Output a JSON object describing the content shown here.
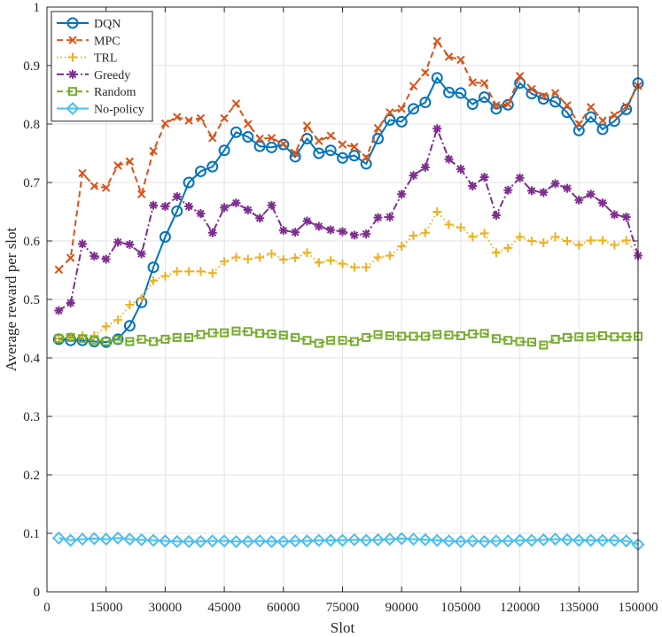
{
  "chart_data": {
    "type": "line",
    "title": "",
    "xlabel": "Slot",
    "ylabel": "Average reward per slot",
    "xlim": [
      0,
      150000
    ],
    "ylim": [
      0,
      1
    ],
    "xticks": [
      0,
      15000,
      30000,
      45000,
      60000,
      75000,
      90000,
      105000,
      120000,
      135000,
      150000
    ],
    "yticks": [
      0,
      0.1,
      0.2,
      0.3,
      0.4,
      0.5,
      0.6,
      0.7,
      0.8,
      0.9,
      1
    ],
    "grid": true,
    "legend_position": "top-left",
    "x": [
      3000,
      6000,
      9000,
      12000,
      15000,
      18000,
      21000,
      24000,
      27000,
      30000,
      33000,
      36000,
      39000,
      42000,
      45000,
      48000,
      51000,
      54000,
      57000,
      60000,
      63000,
      66000,
      69000,
      72000,
      75000,
      78000,
      81000,
      84000,
      87000,
      90000,
      93000,
      96000,
      99000,
      102000,
      105000,
      108000,
      111000,
      114000,
      117000,
      120000,
      123000,
      126000,
      129000,
      132000,
      135000,
      138000,
      141000,
      144000,
      147000,
      150000
    ],
    "series": [
      {
        "name": "DQN",
        "color": "#0072BD",
        "dash": "solid",
        "marker": "circle",
        "values": [
          0.432,
          0.43,
          0.43,
          0.428,
          0.427,
          0.432,
          0.455,
          0.495,
          0.555,
          0.607,
          0.651,
          0.7,
          0.719,
          0.727,
          0.755,
          0.786,
          0.778,
          0.762,
          0.76,
          0.765,
          0.744,
          0.775,
          0.75,
          0.755,
          0.742,
          0.746,
          0.732,
          0.775,
          0.807,
          0.804,
          0.826,
          0.837,
          0.879,
          0.854,
          0.853,
          0.834,
          0.846,
          0.826,
          0.833,
          0.87,
          0.852,
          0.843,
          0.838,
          0.82,
          0.789,
          0.812,
          0.791,
          0.805,
          0.825,
          0.87
        ]
      },
      {
        "name": "MPC",
        "color": "#D95319",
        "dash": "dashed",
        "marker": "x",
        "values": [
          0.551,
          0.571,
          0.716,
          0.694,
          0.691,
          0.729,
          0.736,
          0.68,
          0.754,
          0.801,
          0.812,
          0.806,
          0.81,
          0.776,
          0.81,
          0.835,
          0.8,
          0.775,
          0.776,
          0.766,
          0.75,
          0.797,
          0.771,
          0.78,
          0.765,
          0.761,
          0.743,
          0.793,
          0.82,
          0.826,
          0.865,
          0.888,
          0.942,
          0.915,
          0.91,
          0.871,
          0.87,
          0.832,
          0.834,
          0.882,
          0.86,
          0.848,
          0.853,
          0.832,
          0.8,
          0.829,
          0.806,
          0.815,
          0.83,
          0.865
        ]
      },
      {
        "name": "TRL",
        "color": "#EDB120",
        "dash": "dotted",
        "marker": "plus",
        "values": [
          0.433,
          0.436,
          0.438,
          0.438,
          0.454,
          0.465,
          0.491,
          0.502,
          0.532,
          0.54,
          0.548,
          0.548,
          0.548,
          0.545,
          0.565,
          0.572,
          0.569,
          0.572,
          0.578,
          0.568,
          0.571,
          0.58,
          0.563,
          0.567,
          0.561,
          0.555,
          0.555,
          0.572,
          0.575,
          0.591,
          0.609,
          0.614,
          0.65,
          0.628,
          0.623,
          0.607,
          0.613,
          0.58,
          0.588,
          0.607,
          0.6,
          0.597,
          0.607,
          0.6,
          0.593,
          0.601,
          0.601,
          0.593,
          0.601,
          0.575
        ]
      },
      {
        "name": "Greedy",
        "color": "#7E2F8E",
        "dash": "dashdot",
        "marker": "star",
        "values": [
          0.481,
          0.494,
          0.595,
          0.574,
          0.569,
          0.598,
          0.594,
          0.578,
          0.661,
          0.659,
          0.676,
          0.659,
          0.647,
          0.614,
          0.657,
          0.665,
          0.653,
          0.639,
          0.661,
          0.618,
          0.615,
          0.634,
          0.625,
          0.619,
          0.616,
          0.61,
          0.612,
          0.64,
          0.641,
          0.68,
          0.712,
          0.726,
          0.792,
          0.74,
          0.723,
          0.694,
          0.709,
          0.644,
          0.687,
          0.708,
          0.686,
          0.683,
          0.698,
          0.69,
          0.67,
          0.68,
          0.665,
          0.645,
          0.641,
          0.575
        ]
      },
      {
        "name": "Random",
        "color": "#77AC30",
        "dash": "dashed",
        "marker": "square",
        "values": [
          0.433,
          0.435,
          0.433,
          0.43,
          0.428,
          0.431,
          0.428,
          0.432,
          0.428,
          0.432,
          0.435,
          0.435,
          0.44,
          0.443,
          0.443,
          0.446,
          0.445,
          0.442,
          0.441,
          0.439,
          0.435,
          0.43,
          0.425,
          0.43,
          0.43,
          0.428,
          0.435,
          0.44,
          0.438,
          0.437,
          0.437,
          0.437,
          0.44,
          0.439,
          0.438,
          0.441,
          0.442,
          0.433,
          0.43,
          0.428,
          0.427,
          0.422,
          0.432,
          0.435,
          0.436,
          0.436,
          0.438,
          0.436,
          0.436,
          0.437
        ]
      },
      {
        "name": "No-policy",
        "color": "#4DBEEE",
        "dash": "solid",
        "marker": "diamond",
        "values": [
          0.092,
          0.088,
          0.09,
          0.091,
          0.09,
          0.092,
          0.09,
          0.089,
          0.088,
          0.087,
          0.086,
          0.086,
          0.086,
          0.087,
          0.087,
          0.086,
          0.086,
          0.087,
          0.086,
          0.086,
          0.087,
          0.087,
          0.088,
          0.088,
          0.088,
          0.089,
          0.088,
          0.089,
          0.09,
          0.091,
          0.09,
          0.089,
          0.088,
          0.087,
          0.086,
          0.087,
          0.086,
          0.087,
          0.087,
          0.088,
          0.088,
          0.089,
          0.09,
          0.089,
          0.088,
          0.088,
          0.088,
          0.088,
          0.087,
          0.081
        ]
      }
    ]
  }
}
